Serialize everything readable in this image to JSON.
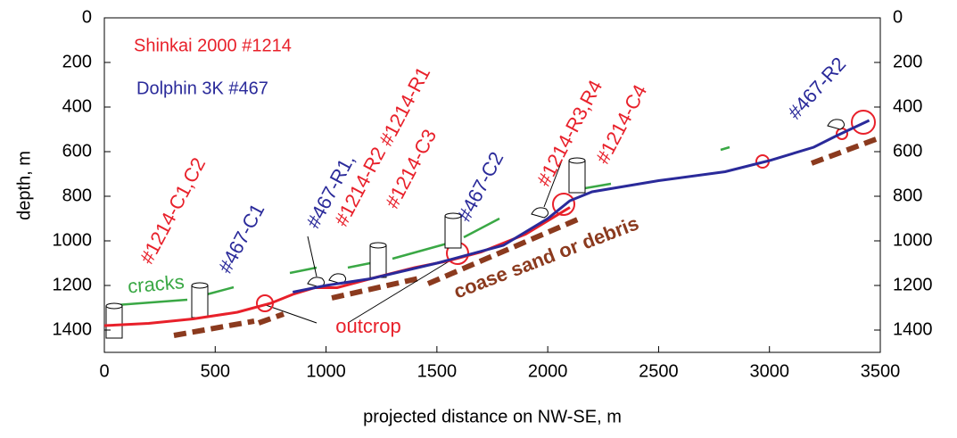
{
  "chart_data": {
    "type": "line",
    "xlabel": "projected distance on NW-SE, m",
    "ylabel": "depth, m",
    "xlim": [
      0,
      3500
    ],
    "xticks": [
      0,
      500,
      1000,
      1500,
      2000,
      2500,
      3000,
      3500
    ],
    "ylim": [
      1500,
      0
    ],
    "yticks": [
      0,
      200,
      400,
      600,
      800,
      1000,
      1200,
      1400
    ],
    "series": [
      {
        "name": "Shinkai 2000 #1214",
        "color": "#e8202a",
        "x": [
          0,
          200,
          400,
          600,
          750,
          850,
          950,
          1050,
          1200,
          1400,
          1550,
          1700,
          1900,
          2000,
          2100
        ],
        "values": [
          1380,
          1370,
          1350,
          1320,
          1280,
          1240,
          1210,
          1210,
          1170,
          1120,
          1090,
          1050,
          970,
          910,
          850
        ]
      },
      {
        "name": "Dolphin 3K #467",
        "color": "#2a2a9a",
        "x": [
          850,
          1000,
          1200,
          1500,
          1800,
          2000,
          2100,
          2200,
          2500,
          2800,
          3000,
          3200,
          3300,
          3450
        ],
        "values": [
          1230,
          1200,
          1170,
          1100,
          1020,
          900,
          820,
          780,
          730,
          690,
          640,
          580,
          530,
          460
        ]
      }
    ],
    "annotations": [
      "#1214-C1,C2",
      "#467-C1",
      "#467-R1,",
      "#1214-R1",
      "#1214-R2",
      "#1214-C3",
      "#467-C2",
      "#1214-R3,R4",
      "#1214-C4",
      "#467-R2",
      "cracks",
      "outcrop",
      "coase sand or debris"
    ]
  }
}
